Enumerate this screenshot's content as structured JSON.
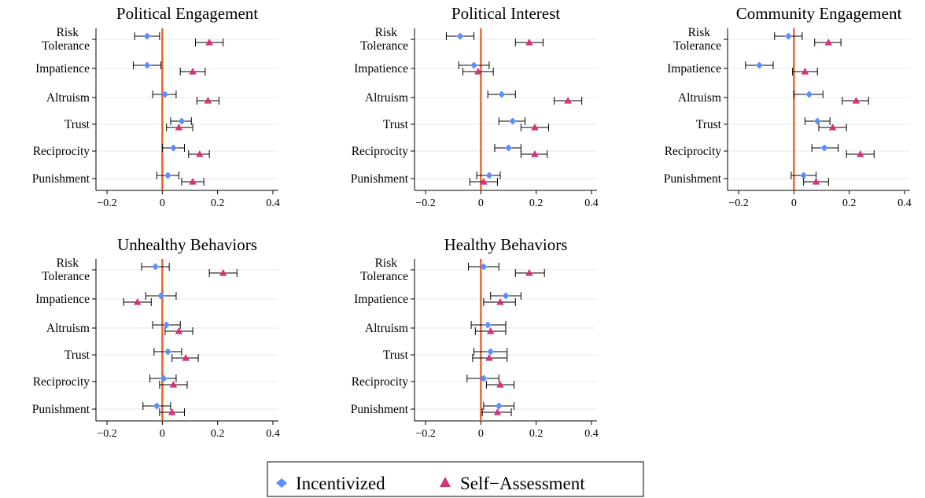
{
  "legend": {
    "incentivized_label": "Incentivized",
    "self_assessment_label": "Self−Assessment"
  },
  "colors": {
    "incentivized": "#5b8ff9",
    "self_assessment": "#d6337a",
    "zero_line": "#e8541e",
    "ci_line": "#000000",
    "grid": "#eaeaea"
  },
  "chart_data": [
    {
      "type": "scatter",
      "title": "Political Engagement",
      "categories": [
        "Risk\nTolerance",
        "Impatience",
        "Altruism",
        "Trust",
        "Reciprocity",
        "Punishment"
      ],
      "xticks": [
        "−0.2",
        "0",
        "0.2",
        "0.4"
      ],
      "xlim": [
        -0.24,
        0.42
      ],
      "series": [
        {
          "name": "Incentivized",
          "marker": "diamond",
          "values": [
            -0.055,
            -0.055,
            0.01,
            0.07,
            0.04,
            0.02
          ],
          "ci_low": [
            -0.1,
            -0.105,
            -0.035,
            0.03,
            0.0,
            -0.02
          ],
          "ci_high": [
            -0.01,
            -0.005,
            0.05,
            0.105,
            0.08,
            0.06
          ]
        },
        {
          "name": "Self−Assessment",
          "marker": "triangle",
          "values": [
            0.17,
            0.11,
            0.165,
            0.06,
            0.135,
            0.11
          ],
          "ci_low": [
            0.12,
            0.065,
            0.125,
            0.015,
            0.095,
            0.07
          ],
          "ci_high": [
            0.22,
            0.155,
            0.205,
            0.11,
            0.17,
            0.15
          ]
        }
      ]
    },
    {
      "type": "scatter",
      "title": "Political Interest",
      "categories": [
        "Risk\nTolerance",
        "Impatience",
        "Altruism",
        "Trust",
        "Reciprocity",
        "Punishment"
      ],
      "xticks": [
        "−0.2",
        "0",
        "0.2",
        "0.4"
      ],
      "xlim": [
        -0.24,
        0.42
      ],
      "series": [
        {
          "name": "Incentivized",
          "marker": "diamond",
          "values": [
            -0.075,
            -0.025,
            0.075,
            0.115,
            0.1,
            0.03
          ],
          "ci_low": [
            -0.125,
            -0.08,
            0.025,
            0.065,
            0.05,
            -0.015
          ],
          "ci_high": [
            -0.025,
            0.03,
            0.125,
            0.16,
            0.145,
            0.07
          ]
        },
        {
          "name": "Self−Assessment",
          "marker": "triangle",
          "values": [
            0.175,
            -0.01,
            0.315,
            0.195,
            0.195,
            0.01
          ],
          "ci_low": [
            0.125,
            -0.065,
            0.265,
            0.145,
            0.145,
            -0.04
          ],
          "ci_high": [
            0.225,
            0.045,
            0.365,
            0.245,
            0.24,
            0.06
          ]
        }
      ]
    },
    {
      "type": "scatter",
      "title": "Community Engagement",
      "categories": [
        "Risk\nTolerance",
        "Impatience",
        "Altruism",
        "Trust",
        "Reciprocity",
        "Punishment"
      ],
      "xticks": [
        "−0.2",
        "0",
        "0.2",
        "0.4"
      ],
      "xlim": [
        -0.24,
        0.42
      ],
      "series": [
        {
          "name": "Incentivized",
          "marker": "diamond",
          "values": [
            -0.02,
            -0.125,
            0.055,
            0.085,
            0.11,
            0.035
          ],
          "ci_low": [
            -0.07,
            -0.175,
            0.0,
            0.04,
            0.065,
            -0.01
          ],
          "ci_high": [
            0.03,
            -0.075,
            0.105,
            0.13,
            0.16,
            0.08
          ]
        },
        {
          "name": "Self−Assessment",
          "marker": "triangle",
          "values": [
            0.125,
            0.04,
            0.225,
            0.14,
            0.24,
            0.08
          ],
          "ci_low": [
            0.075,
            -0.005,
            0.175,
            0.09,
            0.19,
            0.035
          ],
          "ci_high": [
            0.17,
            0.085,
            0.27,
            0.19,
            0.29,
            0.125
          ]
        }
      ]
    },
    {
      "type": "scatter",
      "title": "Unhealthy Behaviors",
      "categories": [
        "Risk\nTolerance",
        "Impatience",
        "Altruism",
        "Trust",
        "Reciprocity",
        "Punishment"
      ],
      "xticks": [
        "−0.2",
        "0",
        "0.2",
        "0.4"
      ],
      "xlim": [
        -0.24,
        0.42
      ],
      "series": [
        {
          "name": "Incentivized",
          "marker": "diamond",
          "values": [
            -0.025,
            -0.005,
            0.015,
            0.02,
            0.005,
            -0.02
          ],
          "ci_low": [
            -0.075,
            -0.06,
            -0.035,
            -0.03,
            -0.045,
            -0.07
          ],
          "ci_high": [
            0.025,
            0.05,
            0.065,
            0.07,
            0.05,
            0.03
          ]
        },
        {
          "name": "Self−Assessment",
          "marker": "triangle",
          "values": [
            0.22,
            -0.09,
            0.06,
            0.085,
            0.04,
            0.035
          ],
          "ci_low": [
            0.17,
            -0.14,
            0.01,
            0.035,
            -0.01,
            -0.01
          ],
          "ci_high": [
            0.27,
            -0.04,
            0.11,
            0.13,
            0.09,
            0.08
          ]
        }
      ]
    },
    {
      "type": "scatter",
      "title": "Healthy Behaviors",
      "categories": [
        "Risk\nTolerance",
        "Impatience",
        "Altruism",
        "Trust",
        "Reciprocity",
        "Punishment"
      ],
      "xticks": [
        "−0.2",
        "0",
        "0.2",
        "0.4"
      ],
      "xlim": [
        -0.24,
        0.42
      ],
      "series": [
        {
          "name": "Incentivized",
          "marker": "diamond",
          "values": [
            0.01,
            0.09,
            0.025,
            0.035,
            0.01,
            0.065
          ],
          "ci_low": [
            -0.045,
            0.035,
            -0.035,
            -0.025,
            -0.05,
            0.01
          ],
          "ci_high": [
            0.065,
            0.145,
            0.09,
            0.095,
            0.065,
            0.12
          ]
        },
        {
          "name": "Self−Assessment",
          "marker": "triangle",
          "values": [
            0.175,
            0.07,
            0.035,
            0.03,
            0.07,
            0.06
          ],
          "ci_low": [
            0.125,
            0.01,
            -0.02,
            -0.03,
            0.02,
            0.005
          ],
          "ci_high": [
            0.23,
            0.125,
            0.09,
            0.095,
            0.12,
            0.11
          ]
        }
      ]
    }
  ]
}
